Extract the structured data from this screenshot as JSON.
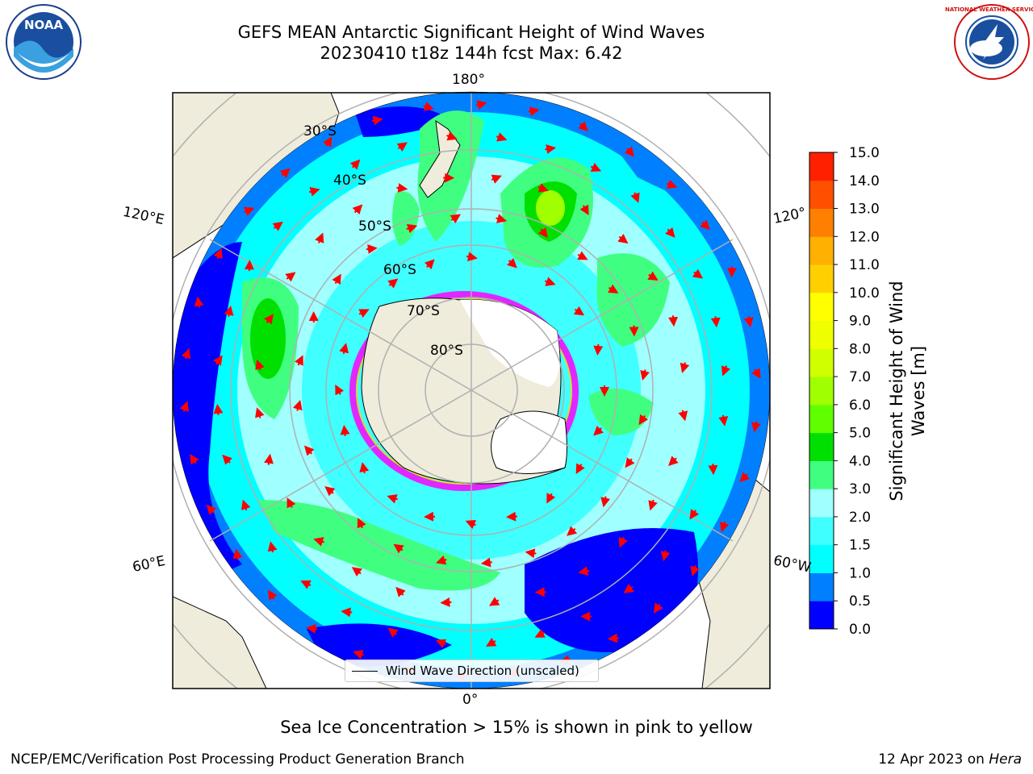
{
  "header": {
    "title_line1": "GEFS MEAN Antarctic Significant Height of Wind Waves",
    "title_line2": "20230410 t18z 144h fcst   Max: 6.42"
  },
  "logos": {
    "left_icon": "noaa-logo",
    "left_text": "NOAA",
    "right_icon": "nws-logo",
    "right_text": "NATIONAL WEATHER SERVICE"
  },
  "map": {
    "projection": "south-polar-stereographic",
    "longitude_labels": [
      "180°",
      "120°E",
      "120°",
      "60°E",
      "60°W",
      "0°"
    ],
    "latitude_labels": [
      "30°S",
      "40°S",
      "50°S",
      "60°S",
      "70°S",
      "80°S"
    ],
    "legend_label": "Wind Wave Direction (unscaled)",
    "arrow_color": "#ff0000",
    "land_color": "#efecdc",
    "ice_color": "#ff00ff"
  },
  "colorbar": {
    "title_line1": "Significant Height of Wind",
    "title_line2": "Waves [m]",
    "ticks": [
      "15.0",
      "14.0",
      "13.0",
      "12.0",
      "11.0",
      "10.0",
      "9.0",
      "8.0",
      "7.0",
      "6.0",
      "5.0",
      "4.0",
      "3.0",
      "2.0",
      "1.5",
      "1.0",
      "0.5",
      "0.0"
    ],
    "colors": [
      "#0000ff",
      "#0080ff",
      "#00ffff",
      "#40ffff",
      "#a0ffff",
      "#40ff80",
      "#00e000",
      "#60ff00",
      "#a0ff00",
      "#d0ff00",
      "#f0ff00",
      "#ffff00",
      "#ffd000",
      "#ffb000",
      "#ff8000",
      "#ff5000",
      "#ff2000",
      "#ff0000"
    ]
  },
  "chart_data": {
    "type": "heatmap",
    "title": "GEFS MEAN Antarctic Significant Height of Wind Waves",
    "subtitle": "20230410 t18z 144h fcst   Max: 6.42",
    "colorbar_label": "Significant Height of Wind Waves [m]",
    "levels": [
      0.0,
      0.5,
      1.0,
      1.5,
      2.0,
      3.0,
      4.0,
      5.0,
      6.0,
      7.0,
      8.0,
      9.0,
      10.0,
      11.0,
      12.0,
      13.0,
      14.0,
      15.0
    ],
    "max": 6.42
  },
  "footer": {
    "note": "Sea Ice Concentration > 15% is shown in pink to yellow",
    "branch": "NCEP/EMC/Verification Post Processing Product Generation Branch",
    "date": "12 Apr 2023 on",
    "system": "Hera"
  }
}
